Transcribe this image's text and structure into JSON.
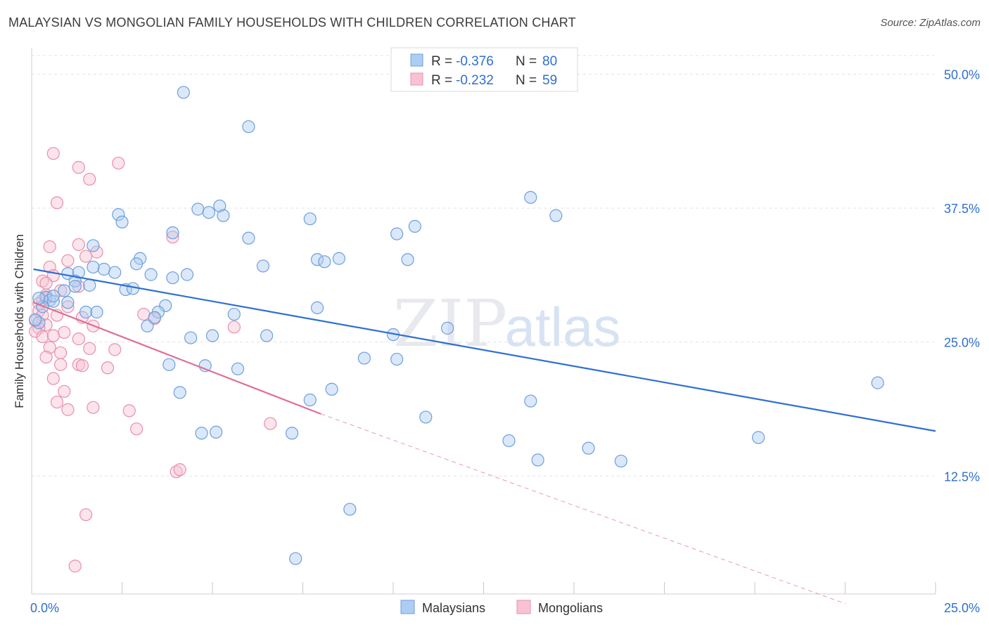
{
  "title": "MALAYSIAN VS MONGOLIAN FAMILY HOUSEHOLDS WITH CHILDREN CORRELATION CHART",
  "source": "Source: ZipAtlas.com",
  "watermark": {
    "zip": "ZIP",
    "atlas": "atlas"
  },
  "legend_box": {
    "rows": [
      {
        "r_label": "R = ",
        "r_value": "-0.376",
        "n_label": "N = ",
        "n_value": "80"
      },
      {
        "r_label": "R = ",
        "r_value": "-0.232",
        "n_label": "N = ",
        "n_value": "59"
      }
    ]
  },
  "colors": {
    "blue_fill": "#aecdf2",
    "blue_stroke": "#6d9fdc",
    "blue_line": "#2f6fd1",
    "pink_fill": "#f7c3d3",
    "pink_stroke": "#e98fab",
    "pink_line": "#e06d96",
    "value_text": "#2f6fd1",
    "grid": "#e3e3e3"
  },
  "chart_data": {
    "type": "scatter",
    "xlabel": "",
    "ylabel": "Family Households with Children",
    "xlim": [
      0,
      25
    ],
    "ylim": [
      1.5,
      52
    ],
    "x_tick_labels": [
      "0.0%",
      "25.0%"
    ],
    "y_ticks": [
      12.5,
      25.0,
      37.5,
      50.0
    ],
    "y_tick_labels": [
      "12.5%",
      "25.0%",
      "37.5%",
      "50.0%"
    ],
    "grid": true,
    "legend_position": "bottom-center",
    "series": [
      {
        "name": "Malaysians",
        "R": -0.376,
        "N": 80,
        "trend": {
          "x": [
            0.05,
            25.0
          ],
          "y": [
            31.8,
            16.7
          ]
        },
        "points": [
          [
            4.2,
            48.3
          ],
          [
            6.0,
            45.1
          ],
          [
            2.4,
            36.9
          ],
          [
            2.5,
            36.2
          ],
          [
            4.6,
            37.4
          ],
          [
            4.9,
            37.1
          ],
          [
            5.2,
            37.7
          ],
          [
            5.3,
            36.8
          ],
          [
            3.9,
            35.2
          ],
          [
            6.0,
            34.7
          ],
          [
            1.7,
            34.0
          ],
          [
            3.0,
            32.8
          ],
          [
            2.9,
            32.3
          ],
          [
            2.0,
            31.8
          ],
          [
            2.3,
            31.5
          ],
          [
            3.3,
            31.3
          ],
          [
            4.3,
            31.3
          ],
          [
            3.9,
            31.0
          ],
          [
            1.0,
            31.4
          ],
          [
            1.3,
            31.5
          ],
          [
            1.2,
            30.7
          ],
          [
            1.6,
            30.3
          ],
          [
            1.2,
            30.2
          ],
          [
            2.6,
            29.9
          ],
          [
            0.9,
            29.8
          ],
          [
            0.4,
            29.2
          ],
          [
            0.5,
            28.9
          ],
          [
            0.6,
            28.8
          ],
          [
            1.0,
            28.7
          ],
          [
            1.5,
            27.8
          ],
          [
            1.8,
            27.8
          ],
          [
            3.7,
            28.4
          ],
          [
            3.5,
            27.8
          ],
          [
            3.4,
            27.3
          ],
          [
            3.2,
            26.5
          ],
          [
            5.6,
            27.6
          ],
          [
            7.7,
            36.5
          ],
          [
            6.4,
            32.1
          ],
          [
            7.9,
            32.7
          ],
          [
            8.1,
            32.5
          ],
          [
            8.5,
            32.8
          ],
          [
            10.1,
            35.1
          ],
          [
            10.6,
            35.8
          ],
          [
            10.4,
            32.7
          ],
          [
            7.9,
            28.2
          ],
          [
            11.5,
            26.3
          ],
          [
            10.0,
            25.7
          ],
          [
            6.5,
            25.6
          ],
          [
            4.4,
            25.4
          ],
          [
            5.0,
            25.6
          ],
          [
            9.2,
            23.5
          ],
          [
            10.1,
            23.4
          ],
          [
            3.8,
            22.9
          ],
          [
            4.8,
            22.8
          ],
          [
            5.7,
            22.5
          ],
          [
            8.3,
            20.6
          ],
          [
            7.7,
            19.6
          ],
          [
            4.1,
            20.3
          ],
          [
            10.9,
            18.0
          ],
          [
            13.8,
            19.5
          ],
          [
            13.8,
            38.5
          ],
          [
            14.5,
            36.8
          ],
          [
            23.4,
            21.2
          ],
          [
            20.1,
            16.1
          ],
          [
            4.7,
            16.5
          ],
          [
            5.1,
            16.6
          ],
          [
            7.2,
            16.5
          ],
          [
            13.2,
            15.8
          ],
          [
            14.0,
            14.0
          ],
          [
            15.4,
            15.1
          ],
          [
            16.3,
            13.9
          ],
          [
            8.8,
            9.4
          ],
          [
            7.3,
            4.8
          ],
          [
            0.2,
            26.8
          ],
          [
            0.1,
            27.1
          ],
          [
            0.3,
            28.3
          ],
          [
            0.2,
            29.1
          ],
          [
            0.6,
            29.3
          ],
          [
            1.7,
            32.0
          ],
          [
            2.8,
            30.0
          ]
        ]
      },
      {
        "name": "Mongolians",
        "R": -0.232,
        "N": 59,
        "trend": {
          "x": [
            0.05,
            8.0
          ],
          "y": [
            28.7,
            18.3
          ]
        },
        "trend_dashed": {
          "x": [
            8.0,
            22.5
          ],
          "y": [
            18.3,
            0.6
          ]
        },
        "points": [
          [
            0.6,
            42.6
          ],
          [
            2.4,
            41.7
          ],
          [
            1.3,
            41.3
          ],
          [
            1.6,
            40.2
          ],
          [
            0.7,
            38.0
          ],
          [
            0.5,
            33.9
          ],
          [
            1.3,
            34.1
          ],
          [
            1.8,
            33.4
          ],
          [
            3.9,
            34.8
          ],
          [
            1.5,
            33.0
          ],
          [
            0.5,
            32.0
          ],
          [
            1.0,
            32.6
          ],
          [
            0.6,
            31.2
          ],
          [
            0.3,
            30.7
          ],
          [
            1.3,
            30.2
          ],
          [
            0.4,
            30.5
          ],
          [
            0.8,
            29.8
          ],
          [
            0.4,
            29.4
          ],
          [
            0.3,
            28.9
          ],
          [
            0.2,
            28.6
          ],
          [
            1.0,
            28.3
          ],
          [
            0.2,
            27.9
          ],
          [
            0.3,
            27.5
          ],
          [
            0.7,
            27.5
          ],
          [
            1.4,
            27.3
          ],
          [
            3.1,
            27.6
          ],
          [
            0.4,
            26.6
          ],
          [
            0.2,
            26.3
          ],
          [
            1.7,
            26.5
          ],
          [
            5.6,
            26.4
          ],
          [
            0.1,
            26.0
          ],
          [
            0.3,
            25.5
          ],
          [
            0.9,
            25.9
          ],
          [
            0.6,
            25.6
          ],
          [
            1.3,
            25.3
          ],
          [
            0.5,
            24.5
          ],
          [
            0.8,
            24.0
          ],
          [
            1.6,
            24.4
          ],
          [
            2.3,
            24.3
          ],
          [
            0.4,
            23.6
          ],
          [
            0.8,
            22.9
          ],
          [
            1.3,
            22.9
          ],
          [
            1.4,
            22.8
          ],
          [
            2.1,
            22.6
          ],
          [
            0.6,
            21.6
          ],
          [
            0.9,
            20.4
          ],
          [
            0.7,
            19.4
          ],
          [
            1.7,
            18.9
          ],
          [
            1.0,
            18.7
          ],
          [
            2.7,
            18.6
          ],
          [
            2.9,
            16.9
          ],
          [
            6.6,
            17.4
          ],
          [
            4.0,
            12.9
          ],
          [
            4.1,
            13.1
          ],
          [
            1.5,
            8.9
          ],
          [
            1.2,
            4.1
          ],
          [
            0.1,
            27.0
          ],
          [
            0.4,
            29.1
          ],
          [
            3.4,
            27.2
          ]
        ]
      }
    ]
  }
}
